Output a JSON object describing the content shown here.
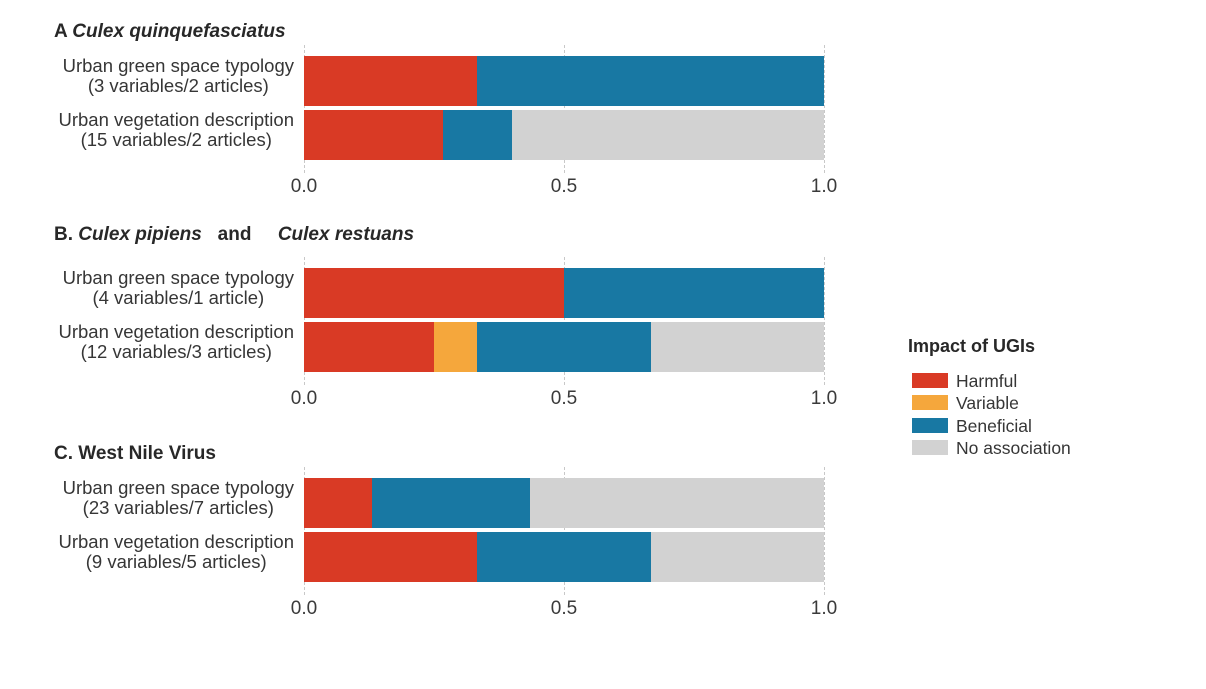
{
  "colors": {
    "Harmful": "#D93A25",
    "Variable": "#F5A73C",
    "Beneficial": "#1878A3",
    "No association": "#D2D2D2"
  },
  "legend": {
    "title": "Impact of UGIs",
    "items": [
      "Harmful",
      "Variable",
      "Beneficial",
      "No association"
    ]
  },
  "chart_data": [
    {
      "type": "bar",
      "orientation": "horizontal",
      "stacked": true,
      "panel": "A",
      "title_parts": [
        {
          "text": "A ",
          "italic": false
        },
        {
          "text": "Culex quinquefasciatus",
          "italic": true
        }
      ],
      "xlim": [
        0,
        1
      ],
      "xticks": [
        {
          "label": "0.0",
          "value": 0
        },
        {
          "label": "0.5",
          "value": 0.5
        },
        {
          "label": "1.0",
          "value": 1
        }
      ],
      "bars": [
        {
          "label_lines": [
            "Urban green space typology",
            "(3 variables/2 articles)"
          ],
          "segments": [
            {
              "name": "Harmful",
              "value": 0.3333
            },
            {
              "name": "Beneficial",
              "value": 0.6667
            }
          ]
        },
        {
          "label_lines": [
            "Urban vegetation description",
            "(15 variables/2 articles)"
          ],
          "segments": [
            {
              "name": "Harmful",
              "value": 0.2667
            },
            {
              "name": "Beneficial",
              "value": 0.1333
            },
            {
              "name": "No association",
              "value": 0.6
            }
          ]
        }
      ]
    },
    {
      "type": "bar",
      "orientation": "horizontal",
      "stacked": true,
      "panel": "B",
      "title_parts": [
        {
          "text": "B. ",
          "italic": false
        },
        {
          "text": "Culex pipiens",
          "italic": true
        },
        {
          "text": "   and     ",
          "italic": false
        },
        {
          "text": "Culex restuans",
          "italic": true
        }
      ],
      "xlim": [
        0,
        1
      ],
      "xticks": [
        {
          "label": "0.0",
          "value": 0
        },
        {
          "label": "0.5",
          "value": 0.5
        },
        {
          "label": "1.0",
          "value": 1
        }
      ],
      "bars": [
        {
          "label_lines": [
            "Urban green space typology",
            "(4 variables/1 article)"
          ],
          "segments": [
            {
              "name": "Harmful",
              "value": 0.5
            },
            {
              "name": "Beneficial",
              "value": 0.5
            }
          ]
        },
        {
          "label_lines": [
            "Urban vegetation description",
            "(12 variables/3 articles)"
          ],
          "segments": [
            {
              "name": "Harmful",
              "value": 0.25
            },
            {
              "name": "Variable",
              "value": 0.0833
            },
            {
              "name": "Beneficial",
              "value": 0.3334
            },
            {
              "name": "No association",
              "value": 0.3333
            }
          ]
        }
      ]
    },
    {
      "type": "bar",
      "orientation": "horizontal",
      "stacked": true,
      "panel": "C",
      "title_parts": [
        {
          "text": "C. West Nile Virus",
          "italic": false
        }
      ],
      "xlim": [
        0,
        1
      ],
      "xticks": [
        {
          "label": "0.0",
          "value": 0
        },
        {
          "label": "0.5",
          "value": 0.5
        },
        {
          "label": "1.0",
          "value": 1
        }
      ],
      "bars": [
        {
          "label_lines": [
            "Urban green space typology",
            "(23 variables/7 articles)"
          ],
          "segments": [
            {
              "name": "Harmful",
              "value": 0.1304
            },
            {
              "name": "Beneficial",
              "value": 0.3044
            },
            {
              "name": "No association",
              "value": 0.5652
            }
          ]
        },
        {
          "label_lines": [
            "Urban vegetation description",
            "(9 variables/5 articles)"
          ],
          "segments": [
            {
              "name": "Harmful",
              "value": 0.3333
            },
            {
              "name": "Beneficial",
              "value": 0.3334
            },
            {
              "name": "No association",
              "value": 0.3333
            }
          ]
        }
      ]
    }
  ]
}
